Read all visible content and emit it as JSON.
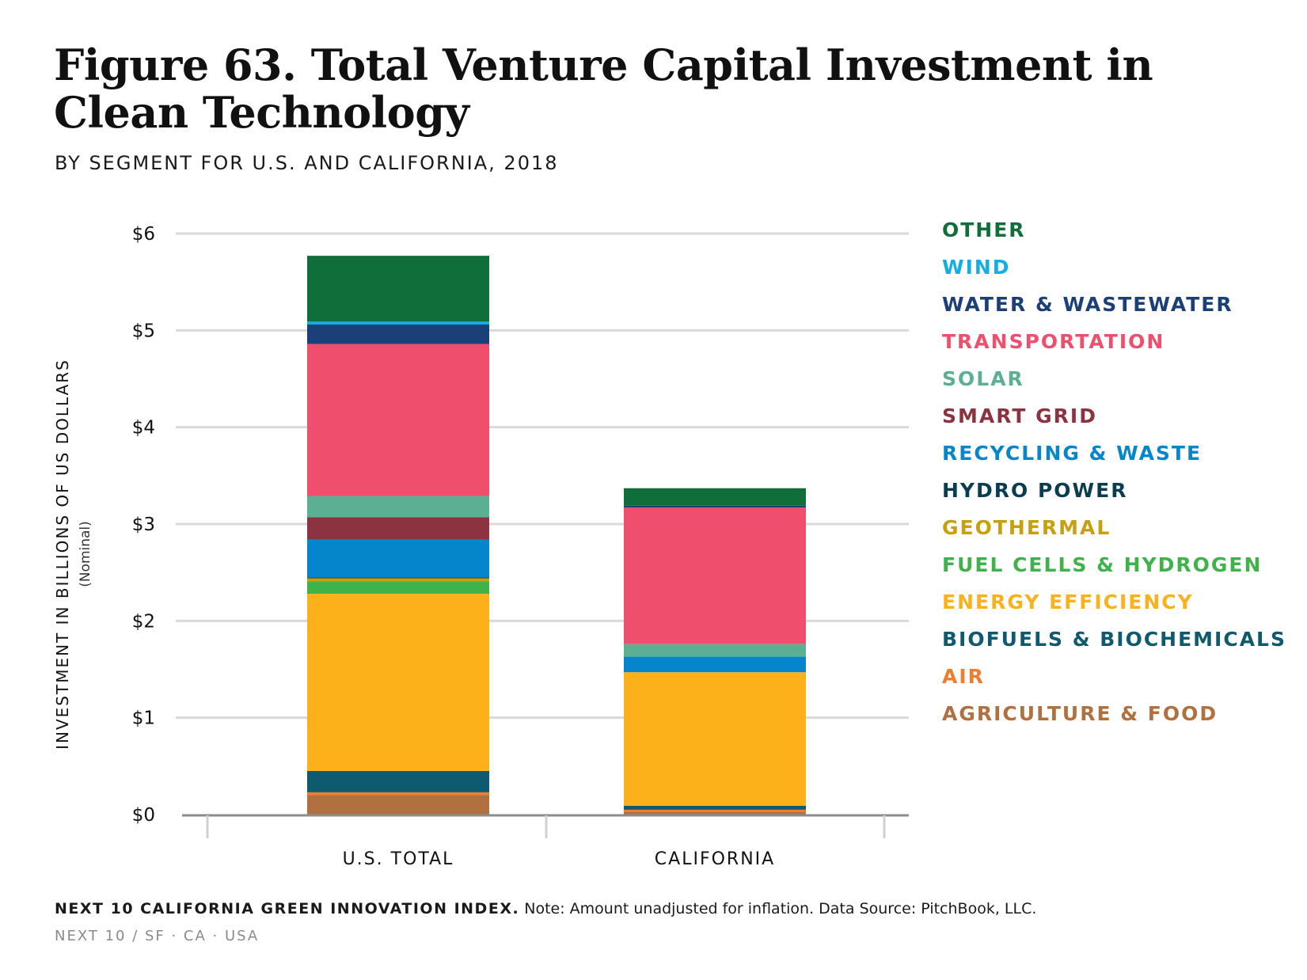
{
  "header": {
    "title": "Figure 63. Total Venture Capital Investment in Clean Technology",
    "subtitle": "BY SEGMENT FOR U.S. AND CALIFORNIA, 2018"
  },
  "footer": {
    "brand": "NEXT 10 CALIFORNIA GREEN INNOVATION INDEX.",
    "note": "Note: Amount unadjusted for inflation. Data Source: PitchBook, LLC.",
    "tagline": "NEXT 10  /  SF · CA · USA"
  },
  "chart_data": {
    "type": "bar",
    "stacked": true,
    "categories": [
      "U.S. TOTAL",
      "CALIFORNIA"
    ],
    "ylabel": "INVESTMENT IN BILLIONS OF US DOLLARS",
    "ylabel_note": "(Nominal)",
    "ylim": [
      0,
      6
    ],
    "yticks": [
      0,
      1,
      2,
      3,
      4,
      5,
      6
    ],
    "ytick_labels": [
      "$0",
      "$1",
      "$2",
      "$3",
      "$4",
      "$5",
      "$6"
    ],
    "grid": true,
    "legend_position": "right",
    "series": [
      {
        "name": "AGRICULTURE & FOOD",
        "color": "#b07040",
        "values": [
          0.2,
          0.03
        ]
      },
      {
        "name": "AIR",
        "color": "#ef7d2e",
        "values": [
          0.03,
          0.02
        ]
      },
      {
        "name": "BIOFUELS & BIOCHEMICALS",
        "color": "#0e5a6e",
        "values": [
          0.22,
          0.04
        ]
      },
      {
        "name": "ENERGY EFFICIENCY",
        "color": "#fcb01a",
        "values": [
          1.83,
          1.38
        ]
      },
      {
        "name": "FUEL CELLS & HYDROGEN",
        "color": "#3fb24a",
        "values": [
          0.13,
          0.0
        ]
      },
      {
        "name": "GEOTHERMAL",
        "color": "#c8a00e",
        "values": [
          0.03,
          0.0
        ]
      },
      {
        "name": "HYDRO POWER",
        "color": "#0b3d50",
        "values": [
          0.01,
          0.0
        ]
      },
      {
        "name": "RECYCLING & WASTE",
        "color": "#0585cc",
        "values": [
          0.39,
          0.16
        ]
      },
      {
        "name": "SMART GRID",
        "color": "#8b3340",
        "values": [
          0.23,
          0.0
        ]
      },
      {
        "name": "SOLAR",
        "color": "#5bb094",
        "values": [
          0.22,
          0.13
        ]
      },
      {
        "name": "TRANSPORTATION",
        "color": "#ef4f6c",
        "values": [
          1.57,
          1.41
        ]
      },
      {
        "name": "WATER & WASTEWATER",
        "color": "#1b3f77",
        "values": [
          0.2,
          0.02
        ]
      },
      {
        "name": "WIND",
        "color": "#13aee6",
        "values": [
          0.03,
          0.0
        ]
      },
      {
        "name": "OTHER",
        "color": "#106e3a",
        "values": [
          0.68,
          0.18
        ]
      }
    ]
  }
}
